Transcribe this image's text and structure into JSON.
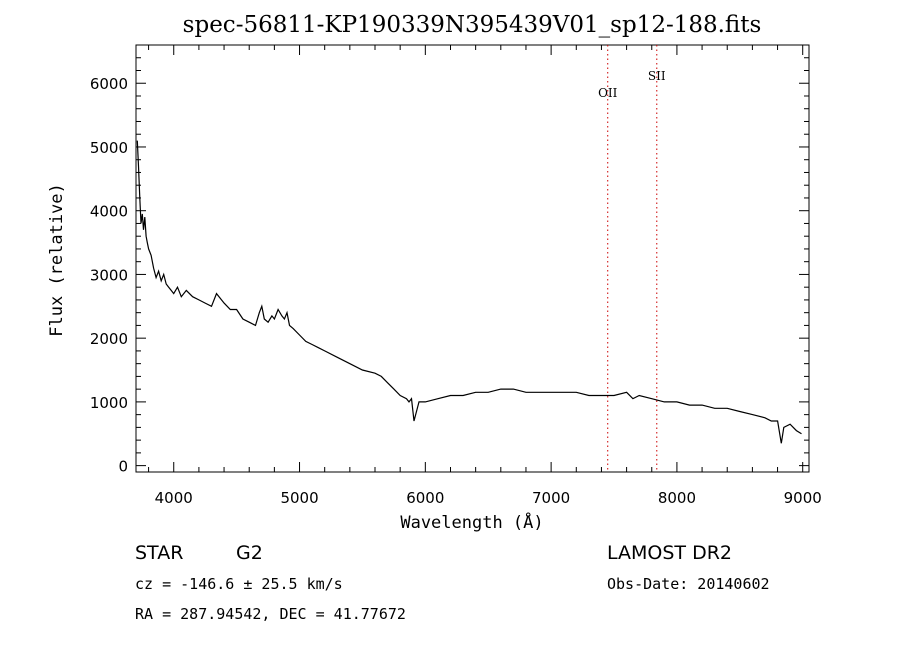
{
  "chart_data": {
    "type": "line",
    "title": "spec-56811-KP190339N395439V01_sp12-188.fits",
    "xlabel": "Wavelength (Å)",
    "ylabel": "Flux (relative)",
    "xlim": [
      3700,
      9050
    ],
    "ylim": [
      -100,
      6600
    ],
    "x_ticks": [
      "4000",
      "5000",
      "6000",
      "7000",
      "8000",
      "9000"
    ],
    "y_ticks": [
      "0",
      "1000",
      "2000",
      "3000",
      "4000",
      "5000",
      "6000"
    ],
    "grid": false,
    "line_color": "#000000",
    "series": [
      {
        "x": [
          3710,
          3720,
          3730,
          3740,
          3750,
          3760,
          3770,
          3780,
          3790,
          3800,
          3820,
          3840,
          3860,
          3880,
          3900,
          3920,
          3940,
          3960,
          3980,
          4000,
          4030,
          4060,
          4100,
          4150,
          4200,
          4250,
          4300,
          4340,
          4400,
          4450,
          4500,
          4550,
          4600,
          4650,
          4680,
          4700,
          4720,
          4750,
          4780,
          4800,
          4830,
          4860,
          4880,
          4900,
          4920,
          4950,
          5000,
          5050,
          5100,
          5150,
          5200,
          5300,
          5400,
          5500,
          5600,
          5650,
          5700,
          5750,
          5800,
          5850,
          5870,
          5890,
          5910,
          5950,
          6000,
          6100,
          6200,
          6300,
          6400,
          6500,
          6600,
          6700,
          6800,
          6900,
          7000,
          7100,
          7200,
          7300,
          7400,
          7500,
          7600,
          7650,
          7700,
          7800,
          7900,
          8000,
          8100,
          8200,
          8300,
          8400,
          8500,
          8600,
          8700,
          8750,
          8800,
          8830,
          8850,
          8900,
          8950,
          8990
        ],
        "y": [
          5100,
          4700,
          4200,
          3800,
          3950,
          3700,
          3900,
          3600,
          3500,
          3400,
          3300,
          3100,
          2950,
          3050,
          2900,
          3000,
          2850,
          2800,
          2750,
          2700,
          2800,
          2650,
          2750,
          2650,
          2600,
          2550,
          2500,
          2700,
          2550,
          2450,
          2450,
          2300,
          2250,
          2200,
          2400,
          2500,
          2300,
          2250,
          2350,
          2300,
          2450,
          2350,
          2300,
          2400,
          2200,
          2150,
          2050,
          1950,
          1900,
          1850,
          1800,
          1700,
          1600,
          1500,
          1450,
          1400,
          1300,
          1200,
          1100,
          1050,
          1000,
          1050,
          700,
          1000,
          1000,
          1050,
          1100,
          1100,
          1150,
          1150,
          1200,
          1200,
          1150,
          1150,
          1150,
          1150,
          1150,
          1100,
          1100,
          1100,
          1150,
          1050,
          1100,
          1050,
          1000,
          1000,
          950,
          950,
          900,
          900,
          850,
          800,
          750,
          700,
          700,
          350,
          600,
          650,
          550,
          500
        ]
      }
    ],
    "emission_lines": [
      {
        "label": "OII",
        "x": 7450
      },
      {
        "label": "SII",
        "x": 7840
      }
    ],
    "line_marker_color": "#cc0000",
    "object_type": "STAR",
    "subclass": "G2",
    "survey": "LAMOST DR2",
    "cz_text": "cz = -146.6 ± 25.5 km/s",
    "obs_date_text": "Obs-Date: 20140602",
    "radec_text": "RA = 287.94542, DEC =  41.77672"
  }
}
